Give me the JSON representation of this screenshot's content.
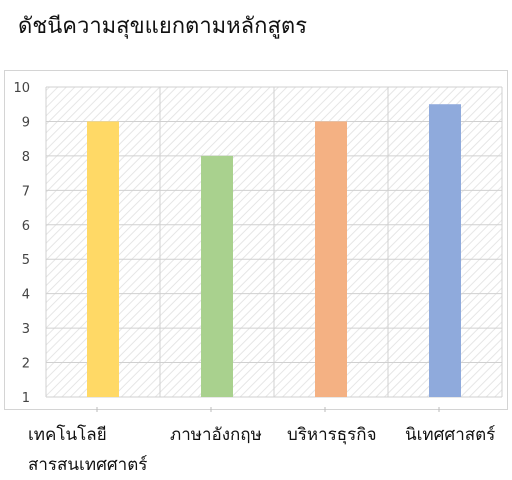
{
  "title": "ดัชนีความสุขแยกตามหลักสูตร",
  "chart_data": {
    "type": "bar",
    "title": "ดัชนีความสุขแยกตามหลักสูตร",
    "categories": [
      "เทคโนโลยีสารสนเทศศาตร์",
      "ภาษาอังกฤษ",
      "บริหารธุรกิจ",
      "นิเทศศาสตร์"
    ],
    "values": [
      9,
      8,
      9,
      9.5
    ],
    "bar_colors": [
      "#ffd966",
      "#a9d18e",
      "#f4b183",
      "#8faadc"
    ],
    "bar_fill": "hatched-light",
    "ylim": [
      1,
      10
    ],
    "yticks": [
      1,
      2,
      3,
      4,
      5,
      6,
      7,
      8,
      9,
      10
    ],
    "grid": true,
    "legend": "none"
  },
  "x_labels": {
    "0": [
      "เทคโนโลยี",
      "สารสนเทศศาตร์"
    ],
    "1": [
      "ภาษาอังกฤษ"
    ],
    "2": [
      "บริหารธุรกิจ"
    ],
    "3": [
      "นิเทศศาสตร์"
    ]
  }
}
